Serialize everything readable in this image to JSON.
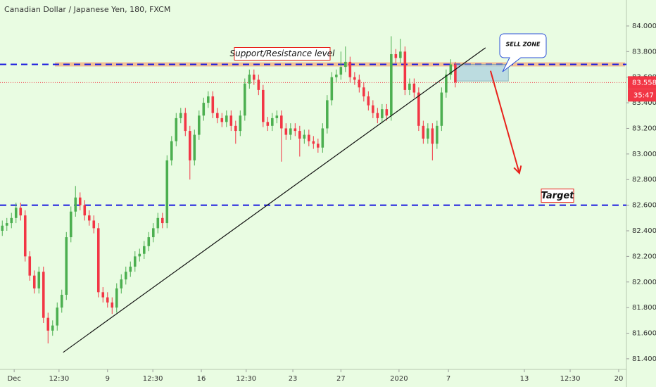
{
  "chart_data": {
    "type": "candlestick",
    "title": "Canadian Dollar / Japanese Yen, 180, FXCM",
    "up_color": "#4caf50",
    "down_color": "#f23645",
    "background": "#e9fce2",
    "open": [
      82.4,
      82.44,
      82.46,
      82.5,
      82.58,
      82.52,
      82.2,
      82.05,
      81.95,
      82.08,
      81.72,
      81.62,
      81.66,
      81.8,
      81.9,
      82.35,
      82.55,
      82.66,
      82.6,
      82.52,
      82.48,
      82.42,
      81.92,
      81.88,
      81.84,
      81.8,
      81.95,
      82.02,
      82.08,
      82.12,
      82.2,
      82.22,
      82.28,
      82.35,
      82.42,
      82.5,
      82.46,
      82.95,
      83.1,
      83.28,
      83.32,
      83.18,
      82.95,
      83.15,
      83.3,
      83.4,
      83.45,
      83.32,
      83.28,
      83.25,
      83.3,
      83.22,
      83.18,
      83.3,
      83.55,
      83.62,
      83.58,
      83.5,
      83.25,
      83.22,
      83.28,
      83.3,
      83.2,
      83.15,
      83.2,
      83.18,
      83.12,
      83.15,
      83.1,
      83.08,
      83.05,
      83.2,
      83.42,
      83.6,
      83.62,
      83.68,
      83.72,
      83.6,
      83.58,
      83.52,
      83.45,
      83.38,
      83.32,
      83.28,
      83.35,
      83.3,
      83.78,
      83.75,
      83.8,
      83.5,
      83.55,
      83.48,
      83.22,
      83.12,
      83.2,
      83.08,
      83.22,
      83.48,
      83.62,
      83.7
    ],
    "high": [
      82.48,
      82.5,
      82.54,
      82.62,
      82.62,
      82.56,
      82.24,
      82.09,
      82.12,
      82.12,
      81.76,
      81.7,
      81.84,
      81.94,
      82.39,
      82.59,
      82.75,
      82.7,
      82.64,
      82.56,
      82.52,
      82.46,
      81.96,
      81.92,
      81.88,
      81.99,
      82.06,
      82.12,
      82.16,
      82.24,
      82.26,
      82.32,
      82.39,
      82.46,
      82.54,
      82.54,
      82.99,
      83.14,
      83.32,
      83.36,
      83.36,
      83.22,
      83.19,
      83.34,
      83.44,
      83.49,
      83.49,
      83.36,
      83.32,
      83.34,
      83.34,
      83.26,
      83.34,
      83.59,
      83.66,
      83.66,
      83.62,
      83.54,
      83.29,
      83.32,
      83.34,
      83.34,
      83.24,
      83.24,
      83.24,
      83.22,
      83.19,
      83.19,
      83.14,
      83.12,
      83.24,
      83.46,
      83.64,
      83.66,
      83.8,
      83.84,
      83.76,
      83.64,
      83.62,
      83.56,
      83.49,
      83.42,
      83.36,
      83.39,
      83.39,
      83.92,
      83.82,
      83.9,
      83.84,
      83.59,
      83.59,
      83.52,
      83.26,
      83.24,
      83.24,
      83.26,
      83.52,
      83.66,
      83.74,
      83.72
    ],
    "low": [
      82.36,
      82.4,
      82.42,
      82.46,
      82.48,
      82.16,
      82.01,
      81.91,
      81.91,
      81.68,
      81.52,
      81.58,
      81.62,
      81.76,
      81.86,
      82.31,
      82.51,
      82.56,
      82.48,
      82.44,
      82.38,
      81.88,
      81.84,
      81.8,
      81.75,
      81.76,
      81.91,
      81.98,
      82.04,
      82.08,
      82.16,
      82.18,
      82.24,
      82.31,
      82.38,
      82.42,
      82.42,
      82.91,
      83.06,
      83.24,
      83.14,
      82.8,
      82.91,
      83.11,
      83.26,
      83.36,
      83.28,
      83.24,
      83.21,
      83.21,
      83.18,
      83.08,
      83.14,
      83.26,
      83.51,
      83.54,
      83.46,
      83.21,
      83.18,
      83.18,
      83.24,
      82.94,
      83.11,
      83.11,
      83.14,
      82.98,
      83.08,
      83.06,
      83.04,
      83.01,
      83.01,
      83.16,
      83.38,
      83.56,
      83.58,
      83.64,
      83.56,
      83.54,
      83.48,
      83.41,
      83.34,
      83.28,
      83.24,
      83.24,
      83.26,
      83.26,
      83.71,
      83.71,
      83.46,
      83.46,
      83.44,
      83.18,
      83.08,
      83.08,
      82.95,
      83.04,
      83.18,
      83.44,
      83.58,
      83.52
    ],
    "close": [
      82.44,
      82.46,
      82.5,
      82.58,
      82.52,
      82.2,
      82.05,
      81.95,
      82.08,
      81.72,
      81.62,
      81.66,
      81.8,
      81.9,
      82.35,
      82.55,
      82.66,
      82.6,
      82.52,
      82.48,
      82.42,
      81.92,
      81.88,
      81.84,
      81.8,
      81.95,
      82.02,
      82.08,
      82.12,
      82.2,
      82.22,
      82.28,
      82.35,
      82.42,
      82.5,
      82.46,
      82.95,
      83.1,
      83.28,
      83.32,
      83.18,
      82.95,
      83.15,
      83.3,
      83.4,
      83.45,
      83.32,
      83.28,
      83.25,
      83.3,
      83.22,
      83.18,
      83.3,
      83.55,
      83.62,
      83.58,
      83.5,
      83.25,
      83.22,
      83.28,
      83.3,
      83.2,
      83.15,
      83.2,
      83.18,
      83.12,
      83.15,
      83.1,
      83.08,
      83.05,
      83.2,
      83.42,
      83.6,
      83.62,
      83.68,
      83.72,
      83.6,
      83.58,
      83.52,
      83.45,
      83.38,
      83.32,
      83.28,
      83.35,
      83.3,
      83.78,
      83.75,
      83.8,
      83.5,
      83.55,
      83.48,
      83.22,
      83.12,
      83.2,
      83.08,
      83.22,
      83.48,
      83.62,
      83.7,
      83.56
    ],
    "xlim": [
      -0.5,
      136.4
    ],
    "ylim": [
      81.317,
      84.203
    ],
    "xticks": [
      {
        "value": 2.6,
        "label": "Dec"
      },
      {
        "value": 12.4,
        "label": "12:30"
      },
      {
        "value": 23,
        "label": "9"
      },
      {
        "value": 32.9,
        "label": "12:30"
      },
      {
        "value": 43.5,
        "label": "16"
      },
      {
        "value": 53.3,
        "label": "12:30"
      },
      {
        "value": 63.5,
        "label": "23"
      },
      {
        "value": 74,
        "label": "27"
      },
      {
        "value": 86.7,
        "label": "2020"
      },
      {
        "value": 97.5,
        "label": "7"
      },
      {
        "value": 114.1,
        "label": "13"
      },
      {
        "value": 124.1,
        "label": "12:30"
      },
      {
        "value": 134.7,
        "label": "20"
      }
    ],
    "yticks": [
      {
        "value": 81.4,
        "label": "81.400"
      },
      {
        "value": 81.6,
        "label": "81.600"
      },
      {
        "value": 81.8,
        "label": "81.800"
      },
      {
        "value": 82.0,
        "label": "82.000"
      },
      {
        "value": 82.2,
        "label": "82.200"
      },
      {
        "value": 82.4,
        "label": "82.400"
      },
      {
        "value": 82.6,
        "label": "82.600"
      },
      {
        "value": 82.8,
        "label": "82.800"
      },
      {
        "value": 83.0,
        "label": "83.000"
      },
      {
        "value": 83.2,
        "label": "83.200"
      },
      {
        "value": 83.4,
        "label": "83.400"
      },
      {
        "value": 83.6,
        "label": "83.600"
      },
      {
        "value": 83.8,
        "label": "83.800"
      },
      {
        "value": 84.0,
        "label": "84.000"
      }
    ],
    "last_price": 83.558,
    "countdown": "35:47",
    "levels": [
      {
        "value": 83.7,
        "label": "Support/Resistance level"
      },
      {
        "value": 82.6,
        "label": "Target"
      }
    ],
    "trendline": {
      "x": [
        13.3,
        105.6
      ],
      "y": [
        81.45,
        83.83
      ]
    },
    "zone": {
      "label": "SELL ZONE",
      "x": [
        99.2,
        110.6
      ],
      "y": [
        83.57,
        83.7
      ]
    },
    "arrow": {
      "x": [
        106.7,
        113.0
      ],
      "y": [
        83.65,
        82.85
      ]
    }
  }
}
